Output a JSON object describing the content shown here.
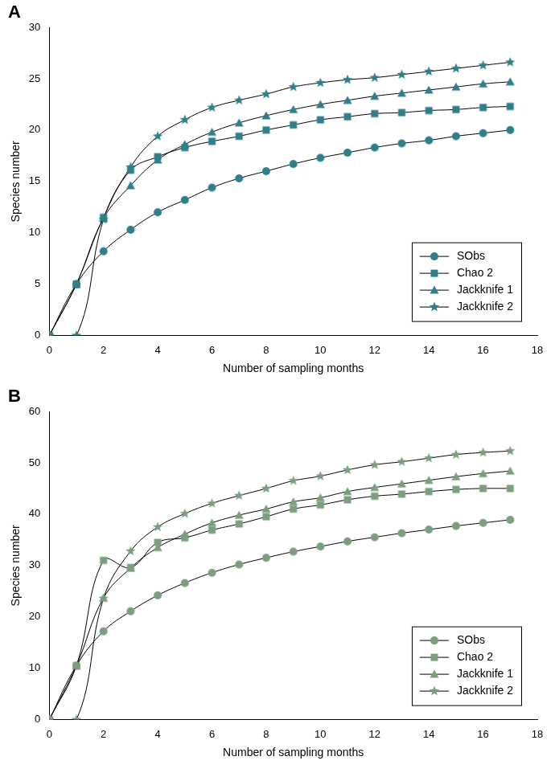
{
  "chart_data": [
    {
      "type": "line",
      "title": "A",
      "x_label": "Number of sampling months",
      "y_label": "Species number",
      "x": [
        0,
        1,
        2,
        3,
        4,
        5,
        6,
        7,
        8,
        9,
        10,
        11,
        12,
        13,
        14,
        15,
        16,
        17
      ],
      "series": [
        {
          "name": "SObs",
          "color": "#2e7f8a",
          "marker": "circle",
          "values": [
            0,
            5,
            8.2,
            10.3,
            12,
            13.2,
            14.4,
            15.3,
            16,
            16.7,
            17.3,
            17.8,
            18.3,
            18.7,
            19,
            19.4,
            19.7,
            20
          ]
        },
        {
          "name": "Chao 2",
          "color": "#2e7f8a",
          "marker": "square",
          "values": [
            0,
            5,
            11.5,
            16.1,
            17.4,
            18.3,
            18.9,
            19.4,
            20,
            20.5,
            21,
            21.3,
            21.6,
            21.7,
            21.9,
            22,
            22.2,
            22.3
          ]
        },
        {
          "name": "Jackknife 1",
          "color": "#2e7f8a",
          "marker": "triangle",
          "values": [
            0,
            5,
            11.4,
            14.6,
            17.1,
            18.6,
            19.8,
            20.7,
            21.4,
            22,
            22.5,
            22.9,
            23.3,
            23.6,
            23.9,
            24.2,
            24.5,
            24.7
          ]
        },
        {
          "name": "Jackknife 2",
          "color": "#2e7f8a",
          "marker": "star",
          "values": [
            0,
            0,
            11.3,
            16.4,
            19.4,
            21,
            22.2,
            22.9,
            23.5,
            24.2,
            24.6,
            24.9,
            25.1,
            25.4,
            25.7,
            26,
            26.3,
            26.6
          ]
        }
      ],
      "xlim": [
        0,
        18
      ],
      "xticks": [
        0,
        2,
        4,
        6,
        8,
        10,
        12,
        14,
        16,
        18
      ],
      "ylim": [
        0,
        30
      ],
      "yticks": [
        0,
        5,
        10,
        15,
        20,
        25,
        30
      ],
      "grid": false,
      "legend": "lower right"
    },
    {
      "type": "line",
      "title": "B",
      "x_label": "Number of sampling months",
      "y_label": "Species number",
      "x": [
        0,
        1,
        2,
        3,
        4,
        5,
        6,
        7,
        8,
        9,
        10,
        11,
        12,
        13,
        14,
        15,
        16,
        17
      ],
      "series": [
        {
          "name": "SObs",
          "color": "#7a9e7e",
          "marker": "circle",
          "values": [
            0,
            10.5,
            17.2,
            21.1,
            24.2,
            26.6,
            28.6,
            30.2,
            31.5,
            32.7,
            33.7,
            34.7,
            35.5,
            36.3,
            37,
            37.7,
            38.3,
            38.9
          ]
        },
        {
          "name": "Chao 2",
          "color": "#7a9e7e",
          "marker": "square",
          "values": [
            0,
            10.5,
            31,
            29.6,
            34.5,
            35.4,
            36.9,
            38.1,
            39.5,
            41,
            41.8,
            42.8,
            43.5,
            43.9,
            44.4,
            44.8,
            45,
            45
          ]
        },
        {
          "name": "Jackknife 1",
          "color": "#7a9e7e",
          "marker": "triangle",
          "values": [
            0,
            10.5,
            23.7,
            29.5,
            33.5,
            36.1,
            38.3,
            39.8,
            41,
            42.4,
            43.2,
            44.4,
            45.2,
            45.9,
            46.6,
            47.3,
            47.9,
            48.4
          ]
        },
        {
          "name": "Jackknife 2",
          "color": "#7a9e7e",
          "marker": "star",
          "values": [
            0,
            0,
            23.6,
            32.8,
            37.5,
            40.1,
            42.1,
            43.6,
            45,
            46.5,
            47.4,
            48.6,
            49.6,
            50.2,
            50.9,
            51.6,
            52,
            52.3
          ]
        }
      ],
      "xlim": [
        0,
        18
      ],
      "xticks": [
        0,
        2,
        4,
        6,
        8,
        10,
        12,
        14,
        16,
        18
      ],
      "ylim": [
        0,
        60
      ],
      "yticks": [
        0,
        10,
        20,
        30,
        40,
        50,
        60
      ],
      "grid": false,
      "legend": "lower right"
    }
  ]
}
